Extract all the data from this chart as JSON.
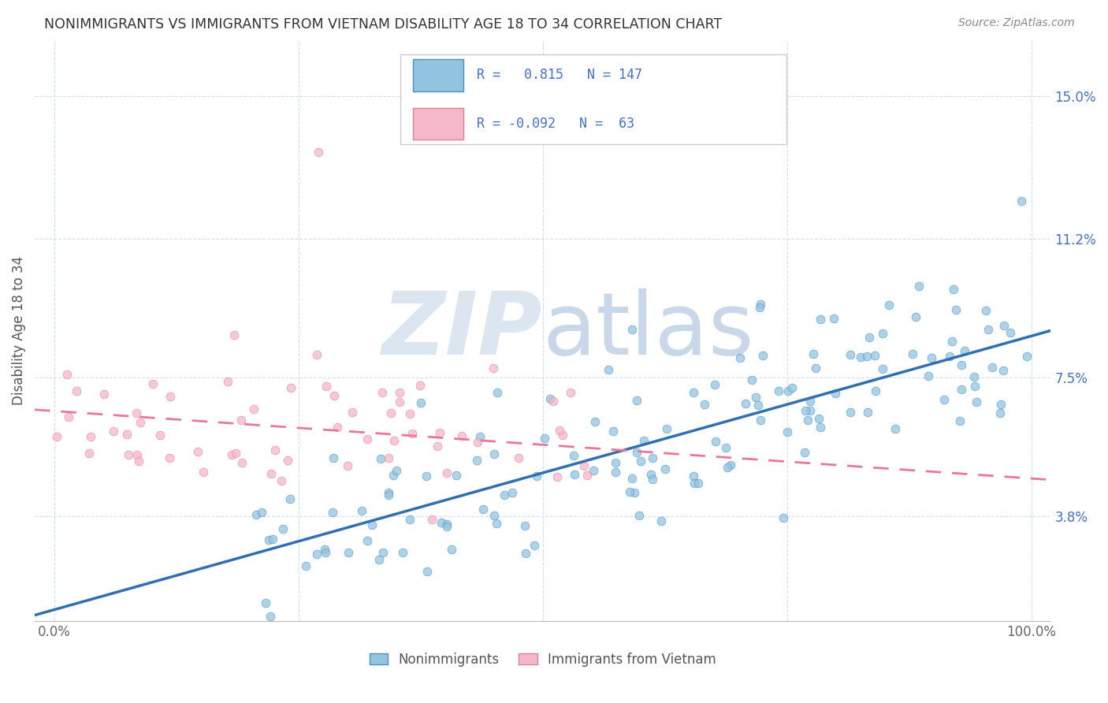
{
  "title": "NONIMMIGRANTS VS IMMIGRANTS FROM VIETNAM DISABILITY AGE 18 TO 34 CORRELATION CHART",
  "source": "Source: ZipAtlas.com",
  "ylabel": "Disability Age 18 to 34",
  "xlim": [
    -2,
    102
  ],
  "ylim": [
    1.0,
    16.5
  ],
  "yticks": [
    3.8,
    7.5,
    11.2,
    15.0
  ],
  "ytick_labels": [
    "3.8%",
    "7.5%",
    "11.2%",
    "15.0%"
  ],
  "xtick_positions": [
    0,
    25,
    50,
    75,
    100
  ],
  "xtick_labels": [
    "0.0%",
    "",
    "",
    "",
    "100.0%"
  ],
  "blue_R": 0.815,
  "blue_N": 147,
  "pink_R": -0.092,
  "pink_N": 63,
  "blue_color": "#93c4e0",
  "pink_color": "#f4b8c8",
  "blue_edge_color": "#4a90c4",
  "pink_edge_color": "#e08098",
  "blue_line_color": "#3070b0",
  "pink_line_color": "#e87898",
  "background_color": "#ffffff",
  "grid_color": "#d4dce8",
  "watermark_color": "#dce6f0",
  "ytick_color": "#4472c4",
  "text_color": "#333333",
  "source_color": "#888888",
  "blue_trend_intercept": 1.3,
  "blue_trend_slope": 0.073,
  "pink_trend_intercept": 6.6,
  "pink_trend_slope": -0.018,
  "legend_label_nonimm": "Nonimmigrants",
  "legend_label_imm": "Immigrants from Vietnam"
}
